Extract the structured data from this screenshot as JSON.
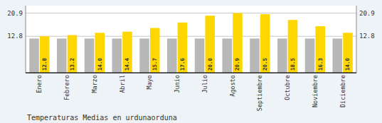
{
  "chart_data": {
    "type": "bar",
    "title": "Temperaturas Medias en urdunaorduna",
    "categories": [
      "Enero",
      "Febrero",
      "Marzo",
      "Abril",
      "Mayo",
      "Junio",
      "Julio",
      "Agosto",
      "Septiembre",
      "Octubre",
      "Noviembre",
      "Diciembre"
    ],
    "series": [
      {
        "color": "#B8B8B8",
        "values": [
          12.0,
          12.0,
          12.0,
          12.0,
          12.0,
          12.0,
          12.0,
          12.0,
          12.0,
          12.0,
          12.0,
          12.0
        ]
      },
      {
        "color": "#FFD700",
        "values": [
          12.8,
          13.2,
          14.0,
          14.4,
          15.7,
          17.6,
          20.0,
          20.9,
          20.5,
          18.5,
          16.3,
          14.0
        ],
        "data_labels": true,
        "value_labels": [
          "12.8",
          "13.2",
          "14.0",
          "14.4",
          "15.7",
          "17.6",
          "20.0",
          "20.9",
          "20.5",
          "18.5",
          "16.3",
          "14.0"
        ]
      }
    ],
    "ylim": [
      0,
      23.5
    ],
    "yticks": [
      12.8,
      20.9
    ],
    "y2lim": [
      0,
      23.5
    ],
    "y2ticks": [
      12.8,
      20.9
    ],
    "grid": true
  }
}
